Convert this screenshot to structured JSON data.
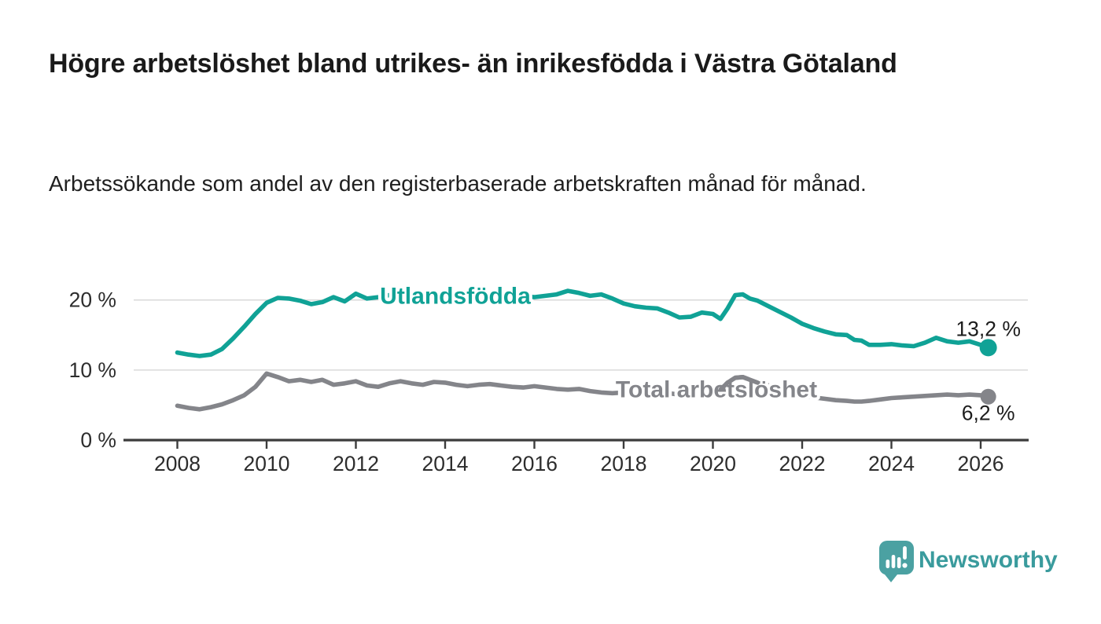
{
  "header": {
    "title": "Högre arbetslöshet bland utrikes- än inrikesfödda i Västra Götaland",
    "subtitle": "Arbetssökande som andel av den registerbaserade arbetskraften månad för månad."
  },
  "logo": {
    "text": "Newsworthy",
    "icon": "newsworthy-speech-bubble-bar-chart-icon",
    "icon_color": "#4ba1a2",
    "text_color": "#3a9b9d"
  },
  "colors": {
    "accent_teal": "#10a296",
    "neutral_gray": "#84858a",
    "axis": "#3c3c3c",
    "gridline": "#d9d9d9",
    "text_dark": "#1a1a1a"
  },
  "chart_data": {
    "type": "line",
    "title": "Högre arbetslöshet bland utrikes- än inrikesfödda i Västra Götaland",
    "subtitle": "Arbetssökande som andel av den registerbaserade arbetskraften månad för månad.",
    "xlabel": "",
    "ylabel": "",
    "unit": "%",
    "grid": "horizontal-only",
    "legend_position": "inline-on-line",
    "x_range": [
      2007.8,
      2027.0
    ],
    "ylim": [
      0,
      23
    ],
    "y_axis": {
      "ticks": [
        {
          "value": 0,
          "label": "0 %"
        },
        {
          "value": 10,
          "label": "10 %"
        },
        {
          "value": 20,
          "label": "20 %"
        }
      ],
      "gridline_values": [
        10,
        20
      ]
    },
    "x_axis": {
      "ticks": [
        {
          "value": 2008,
          "label": "2008"
        },
        {
          "value": 2010,
          "label": "2010"
        },
        {
          "value": 2012,
          "label": "2012"
        },
        {
          "value": 2014,
          "label": "2014"
        },
        {
          "value": 2016,
          "label": "2016"
        },
        {
          "value": 2018,
          "label": "2018"
        },
        {
          "value": 2020,
          "label": "2020"
        },
        {
          "value": 2022,
          "label": "2022"
        },
        {
          "value": 2024,
          "label": "2024"
        },
        {
          "value": 2026,
          "label": "2026"
        }
      ]
    },
    "x": [
      2008.0,
      2008.25,
      2008.5,
      2008.75,
      2009.0,
      2009.25,
      2009.5,
      2009.75,
      2010.0,
      2010.25,
      2010.5,
      2010.75,
      2011.0,
      2011.25,
      2011.5,
      2011.75,
      2012.0,
      2012.25,
      2012.5,
      2012.75,
      2013.0,
      2013.25,
      2013.5,
      2013.75,
      2014.0,
      2014.25,
      2014.5,
      2014.75,
      2015.0,
      2015.25,
      2015.5,
      2015.75,
      2016.0,
      2016.25,
      2016.5,
      2016.75,
      2017.0,
      2017.25,
      2017.5,
      2017.75,
      2018.0,
      2018.25,
      2018.5,
      2018.75,
      2019.0,
      2019.25,
      2019.5,
      2019.75,
      2020.0,
      2020.17,
      2020.33,
      2020.5,
      2020.67,
      2020.83,
      2021.0,
      2021.25,
      2021.5,
      2021.75,
      2022.0,
      2022.25,
      2022.5,
      2022.75,
      2023.0,
      2023.17,
      2023.33,
      2023.5,
      2023.75,
      2024.0,
      2024.25,
      2024.5,
      2024.75,
      2025.0,
      2025.25,
      2025.5,
      2025.75,
      2026.0,
      2026.17
    ],
    "series": [
      {
        "id": "utlandsfodda",
        "name": "Utlandsfödda",
        "color": "#10a296",
        "end_label": "13,2 %",
        "end_value": 13.2,
        "values": [
          12.5,
          12.2,
          12.0,
          12.2,
          13.0,
          14.5,
          16.2,
          18.0,
          19.6,
          20.3,
          20.2,
          19.9,
          19.4,
          19.7,
          20.4,
          19.8,
          20.9,
          20.2,
          20.4,
          20.7,
          20.3,
          20.1,
          20.2,
          20.5,
          20.4,
          20.1,
          20.3,
          20.4,
          20.2,
          20.0,
          20.3,
          20.5,
          20.4,
          20.6,
          20.8,
          21.3,
          21.0,
          20.6,
          20.8,
          20.2,
          19.5,
          19.1,
          18.9,
          18.8,
          18.2,
          17.5,
          17.6,
          18.2,
          18.0,
          17.3,
          18.8,
          20.7,
          20.8,
          20.2,
          19.9,
          19.1,
          18.3,
          17.5,
          16.6,
          16.0,
          15.5,
          15.1,
          15.0,
          14.3,
          14.2,
          13.6,
          13.6,
          13.7,
          13.5,
          13.4,
          13.9,
          14.6,
          14.1,
          13.9,
          14.1,
          13.6,
          13.2
        ]
      },
      {
        "id": "total",
        "name": "Total arbetslöshet",
        "color": "#84858a",
        "end_label": "6,2 %",
        "end_value": 6.2,
        "values": [
          4.9,
          4.6,
          4.4,
          4.7,
          5.1,
          5.7,
          6.4,
          7.6,
          9.5,
          9.0,
          8.4,
          8.6,
          8.3,
          8.6,
          7.9,
          8.1,
          8.4,
          7.8,
          7.6,
          8.1,
          8.4,
          8.1,
          7.9,
          8.3,
          8.2,
          7.9,
          7.7,
          7.9,
          8.0,
          7.8,
          7.6,
          7.5,
          7.7,
          7.5,
          7.3,
          7.2,
          7.3,
          7.0,
          6.8,
          6.7,
          6.8,
          6.6,
          6.5,
          6.6,
          6.7,
          6.5,
          6.6,
          6.8,
          6.9,
          7.2,
          8.2,
          8.9,
          9.0,
          8.6,
          8.2,
          7.8,
          7.3,
          6.9,
          6.5,
          6.1,
          5.9,
          5.7,
          5.6,
          5.5,
          5.5,
          5.6,
          5.8,
          6.0,
          6.1,
          6.2,
          6.3,
          6.4,
          6.5,
          6.4,
          6.5,
          6.4,
          6.2
        ]
      }
    ]
  }
}
